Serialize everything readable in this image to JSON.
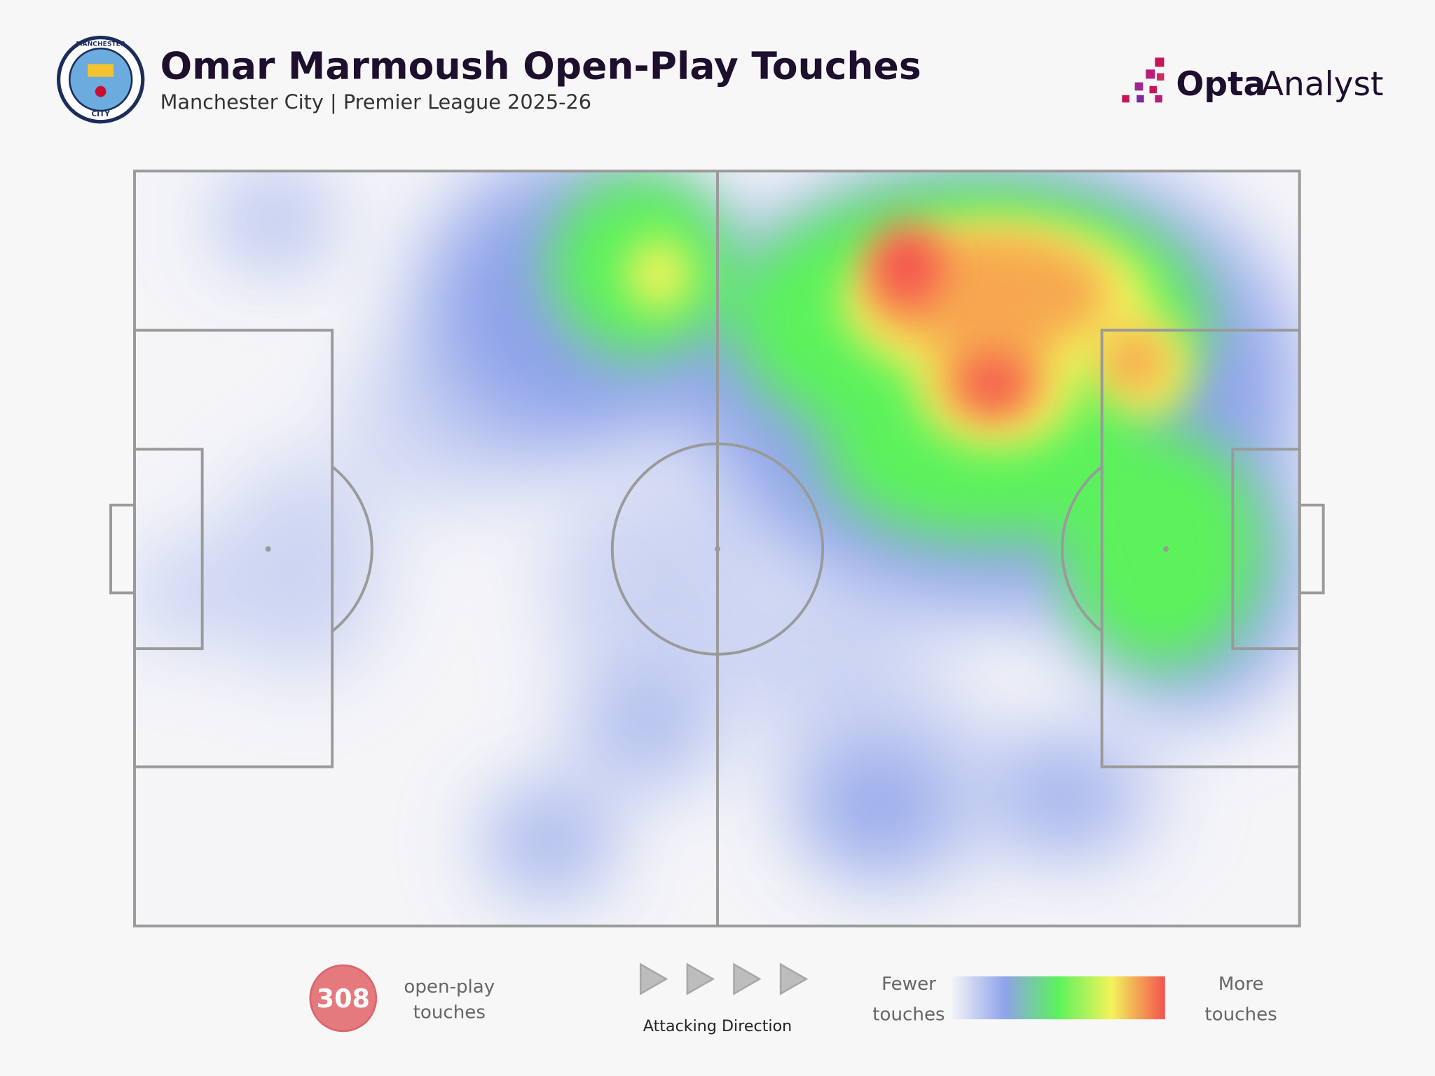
{
  "header": {
    "title": "Omar Marmoush Open-Play Touches",
    "subtitle": "Manchester City | Premier League 2025-26",
    "badge": {
      "top": "MANCHESTER",
      "bottom": "CITY"
    }
  },
  "brand": {
    "name": "Opta",
    "suffix": "Analyst"
  },
  "footer": {
    "count": 308,
    "count_label": [
      "open-play",
      "touches"
    ],
    "direction": "Attacking Direction",
    "scale_low": [
      "Fewer",
      "touches"
    ],
    "scale_high": [
      "More",
      "touches"
    ]
  }
}
